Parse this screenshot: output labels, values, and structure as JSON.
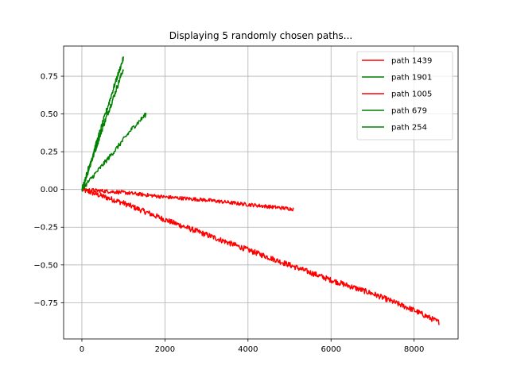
{
  "chart_data": {
    "type": "line",
    "title": "Displaying 5 randomly chosen paths...",
    "xlabel": "",
    "ylabel": "",
    "xlim": [
      -440,
      9060
    ],
    "ylim": [
      -0.99,
      0.95
    ],
    "xticks": [
      0,
      2000,
      4000,
      6000,
      8000
    ],
    "xtick_labels": [
      "0",
      "2000",
      "4000",
      "6000",
      "8000"
    ],
    "yticks": [
      -0.75,
      -0.5,
      -0.25,
      0.0,
      0.25,
      0.5,
      0.75
    ],
    "ytick_labels": [
      "−0.75",
      "−0.50",
      "−0.25",
      "0.00",
      "0.25",
      "0.50",
      "0.75"
    ],
    "grid": true,
    "legend_position": "top-right",
    "series": [
      {
        "name": "path 1439",
        "color": "#ff0000",
        "x": [
          0,
          1000,
          2000,
          3000,
          4000,
          5000,
          6000,
          7000,
          8000,
          8600
        ],
        "y": [
          0.0,
          -0.09,
          -0.2,
          -0.3,
          -0.4,
          -0.5,
          -0.6,
          -0.69,
          -0.8,
          -0.88
        ],
        "jitter": 0.018
      },
      {
        "name": "path 1901",
        "color": "#008000",
        "x": [
          0,
          250,
          500,
          750,
          1000
        ],
        "y": [
          0.0,
          0.2,
          0.41,
          0.6,
          0.8
        ],
        "jitter": 0.018
      },
      {
        "name": "path 1005",
        "color": "#ff0000",
        "x": [
          0,
          1000,
          2000,
          3000,
          4000,
          5100
        ],
        "y": [
          0.0,
          -0.02,
          -0.05,
          -0.07,
          -0.1,
          -0.13
        ],
        "jitter": 0.012
      },
      {
        "name": "path 679",
        "color": "#008000",
        "x": [
          0,
          250,
          500,
          750,
          1000
        ],
        "y": [
          0.0,
          0.22,
          0.44,
          0.66,
          0.87
        ],
        "jitter": 0.018
      },
      {
        "name": "path 254",
        "color": "#008000",
        "x": [
          0,
          400,
          800,
          1200,
          1550
        ],
        "y": [
          0.0,
          0.13,
          0.26,
          0.4,
          0.5
        ],
        "jitter": 0.015
      }
    ]
  }
}
